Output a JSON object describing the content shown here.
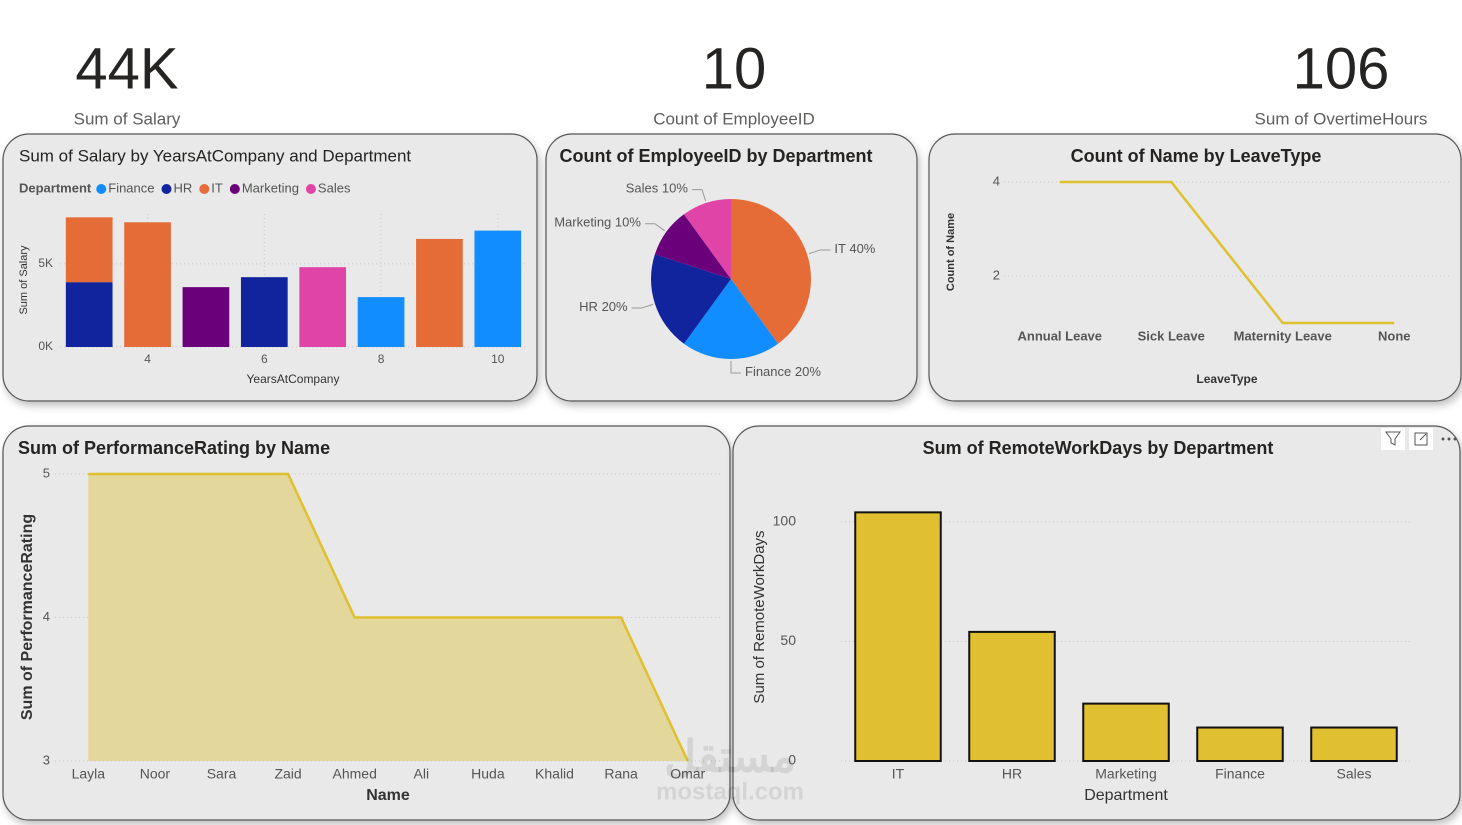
{
  "cards": [
    {
      "value": "44K",
      "label": "Sum of Salary"
    },
    {
      "value": "10",
      "label": "Count of EmployeeID"
    },
    {
      "value": "106",
      "label": "Sum of OvertimeHours"
    }
  ],
  "chart_data": [
    {
      "type": "bar",
      "stacked": true,
      "title": "Sum of Salary by YearsAtCompany and Department",
      "legend_title": "Department",
      "x_label": "YearsAtCompany",
      "y_label": "Sum of Salary",
      "x": [
        3,
        4,
        5,
        6,
        7,
        8,
        9,
        10
      ],
      "xlim": [
        2.5,
        10.5
      ],
      "xticks": [
        4,
        6,
        8,
        10
      ],
      "ylim": [
        0,
        8000
      ],
      "yticks": [
        {
          "value": 0,
          "label": "0K"
        },
        {
          "value": 5000,
          "label": "5K"
        }
      ],
      "grid": true,
      "series": [
        {
          "name": "Finance",
          "color": "#118dff",
          "values": [
            null,
            null,
            null,
            null,
            null,
            3000,
            null,
            7000
          ]
        },
        {
          "name": "HR",
          "color": "#12239e",
          "values": [
            3900,
            null,
            null,
            4200,
            null,
            null,
            null,
            null
          ]
        },
        {
          "name": "IT",
          "color": "#e66c37",
          "values": [
            3900,
            7500,
            null,
            null,
            null,
            null,
            6500,
            null
          ]
        },
        {
          "name": "Marketing",
          "color": "#6b007b",
          "values": [
            null,
            null,
            3600,
            null,
            null,
            null,
            null,
            null
          ]
        },
        {
          "name": "Sales",
          "color": "#e044a7",
          "values": [
            null,
            null,
            null,
            null,
            4800,
            null,
            null,
            null
          ]
        }
      ]
    },
    {
      "type": "pie",
      "title": "Count of EmployeeID by Department",
      "categories": [
        "IT",
        "Finance",
        "HR",
        "Marketing",
        "Sales"
      ],
      "values": [
        40,
        20,
        20,
        10,
        10
      ],
      "value_labels": [
        "40%",
        "20%",
        "20%",
        "10%",
        "10%"
      ],
      "colors": [
        "#e66c37",
        "#118dff",
        "#12239e",
        "#6b007b",
        "#e044a7"
      ]
    },
    {
      "type": "line",
      "title": "Count of Name by LeaveType",
      "x_label": "LeaveType",
      "y_label": "Count of Name",
      "categories": [
        "Annual Leave",
        "Sick Leave",
        "Maternity Leave",
        "None"
      ],
      "values": [
        4,
        4,
        1,
        1
      ],
      "color": "#dfc02f",
      "ylim": [
        1,
        4
      ],
      "yticks": [
        2,
        4
      ],
      "grid": true
    },
    {
      "type": "area",
      "title": "Sum of PerformanceRating by Name",
      "x_label": "Name",
      "y_label": "Sum of PerformanceRating",
      "categories": [
        "Layla",
        "Noor",
        "Sara",
        "Zaid",
        "Ahmed",
        "Ali",
        "Huda",
        "Khalid",
        "Rana",
        "Omar"
      ],
      "values": [
        5,
        5,
        5,
        5,
        4,
        4,
        4,
        4,
        4,
        3
      ],
      "color": "#dfc02f",
      "fill": "#e3d79c",
      "ylim": [
        3,
        5
      ],
      "yticks": [
        3,
        4,
        5
      ],
      "grid": true
    },
    {
      "type": "bar",
      "title": "Sum of RemoteWorkDays by Department",
      "x_label": "Department",
      "y_label": "Sum of RemoteWorkDays",
      "categories": [
        "IT",
        "HR",
        "Marketing",
        "Finance",
        "Sales"
      ],
      "values": [
        104,
        54,
        24,
        14,
        14
      ],
      "color": "#e0c030",
      "stroke": "#111111",
      "ylim": [
        0,
        110
      ],
      "yticks": [
        0,
        50,
        100
      ],
      "grid": true
    }
  ],
  "watermark": {
    "arabic": "مستقل",
    "latin": "mostaql.com"
  }
}
